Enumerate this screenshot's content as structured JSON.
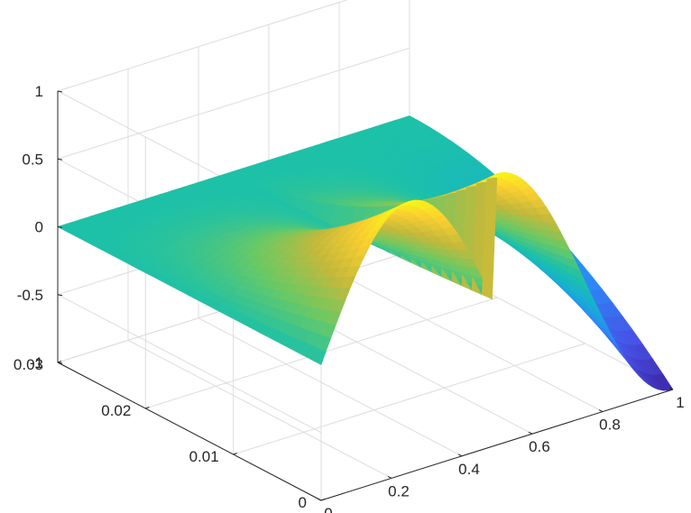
{
  "chart_data": {
    "type": "surface",
    "title": "",
    "xlabel": "",
    "ylabel": "",
    "zlabel": "",
    "xlim": [
      0,
      1
    ],
    "ylim": [
      0,
      0.03
    ],
    "zlim": [
      -1,
      1
    ],
    "x_ticks": [
      "0",
      "0.2",
      "0.4",
      "0.6",
      "0.8",
      "1"
    ],
    "y_ticks": [
      "0",
      "0.01",
      "0.02",
      "0.03"
    ],
    "z_ticks": [
      "-1",
      "-0.5",
      "0",
      "0.5",
      "1"
    ],
    "grid": true,
    "colormap": "parula",
    "colormap_stops": [
      "#3e26a8",
      "#4653e6",
      "#2d87f7",
      "#16aed5",
      "#1dc1a8",
      "#6bc964",
      "#c4b93b",
      "#f9ce31",
      "#f9fb14"
    ],
    "surface_points": [
      {
        "x": 0.0,
        "y": 0.0,
        "z": 0.0
      },
      {
        "x": 0.333,
        "y": 0.0,
        "z": -1.0
      },
      {
        "x": 0.5,
        "y": 0.0,
        "z": 0.8
      },
      {
        "x": 0.833,
        "y": 0.0,
        "z": -1.0
      },
      {
        "x": 0.0,
        "y": 0.03,
        "z": 0.0
      },
      {
        "x": 1.0,
        "y": 0.03,
        "z": 0.0
      }
    ]
  }
}
